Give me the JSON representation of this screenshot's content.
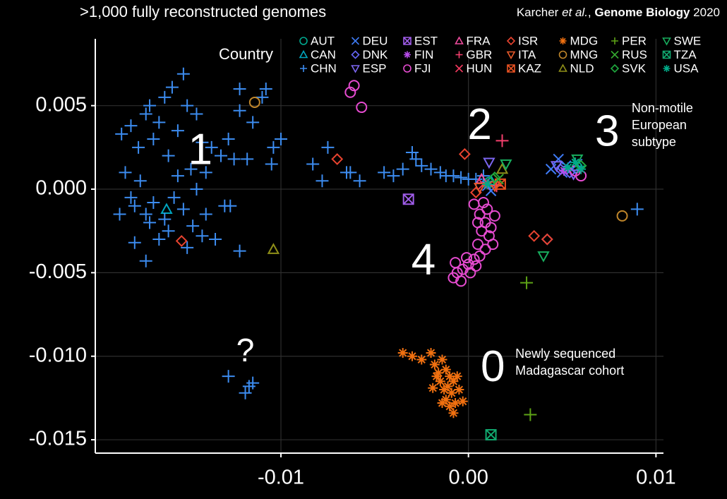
{
  "chart_data": {
    "type": "scatter",
    "title": ">1,000 fully reconstructed genomes",
    "citation": [
      "Karcher ",
      "et al.",
      ", ",
      "Genome Biology",
      " 2020"
    ],
    "legend_title": "Country",
    "annotations": [
      {
        "text": "1",
        "x": -0.0143,
        "y": 0.0022
      },
      {
        "text": "2",
        "x": 0.0006,
        "y": 0.0037
      },
      {
        "text": "3",
        "x": 0.0074,
        "y": 0.0033
      },
      {
        "text": "4",
        "x": -0.0024,
        "y": -0.0044
      },
      {
        "text": "0",
        "x": 0.0013,
        "y": -0.0108
      },
      {
        "text": "?",
        "x": -0.0119,
        "y": -0.0098
      }
    ],
    "notes": [
      {
        "lines": [
          "Non-motile",
          "European",
          "subtype"
        ],
        "x": 0.0087,
        "y": 0.0048
      },
      {
        "lines": [
          "Newly sequenced",
          "Madagascar cohort"
        ],
        "x": 0.0025,
        "y": -0.0099
      }
    ],
    "xlim": [
      -0.0199,
      0.0104
    ],
    "ylim": [
      -0.0158,
      0.009
    ],
    "xticks": [
      -0.01,
      {
        "value": 0,
        "label": "0.00"
      },
      0.01
    ],
    "yticks": [
      0.005,
      {
        "value": 0,
        "label": "0.000"
      },
      -0.005,
      {
        "value": -0.01,
        "label": "-0.010"
      },
      -0.015
    ],
    "grid": true,
    "series": [
      {
        "name": "AUT",
        "color": "#00A98F",
        "marker": "circle",
        "x": [
          0.0011,
          0.0058
        ],
        "values": [
          0.0004,
          0.0013
        ]
      },
      {
        "name": "CAN",
        "color": "#00A6C0",
        "marker": "triangle",
        "x": [
          -0.0161,
          0.0012
        ],
        "values": [
          -0.0012,
          0.0005
        ]
      },
      {
        "name": "CHN",
        "color": "#3C8CF0",
        "marker": "plus",
        "x": [
          -0.0185,
          -0.018,
          -0.0176,
          -0.0172,
          -0.017,
          -0.0168,
          -0.0165,
          -0.0162,
          -0.016,
          -0.0158,
          -0.0155,
          -0.0152,
          -0.015,
          -0.0148,
          -0.0145,
          -0.0142,
          -0.014,
          -0.0137,
          -0.0132,
          -0.0128,
          -0.0183,
          -0.018,
          -0.0178,
          -0.0175,
          -0.0172,
          -0.017,
          -0.0168,
          -0.0165,
          -0.0162,
          -0.016,
          -0.0157,
          -0.0155,
          -0.0152,
          -0.015,
          -0.0147,
          -0.0145,
          -0.0142,
          -0.014,
          -0.0135,
          -0.013,
          -0.0122,
          -0.0172,
          -0.0178,
          -0.0186,
          -0.0122,
          -0.0115,
          -0.011,
          -0.0108,
          -0.0104,
          -0.01,
          -0.0105,
          -0.0125,
          -0.0118,
          -0.0083,
          -0.0078,
          -0.0075,
          -0.0065,
          -0.0063,
          -0.0058,
          -0.0045,
          -0.004,
          -0.0035,
          -0.003,
          -0.0028,
          -0.0025,
          -0.002,
          -0.0015,
          -0.0012,
          -0.0008,
          -0.0004,
          0,
          0.0004,
          0.0008,
          0.009,
          -0.0128,
          -0.0117,
          -0.0115,
          -0.0119,
          -0.0127,
          -0.0122
        ],
        "values": [
          0.0033,
          0.0038,
          0.0025,
          0.0045,
          0.005,
          0.003,
          0.004,
          0.0055,
          0.002,
          0.0061,
          0.0035,
          0.0069,
          0.005,
          0.0012,
          0.0045,
          0.0028,
          0.001,
          0.0025,
          0.002,
          0.003,
          0.001,
          -0.0005,
          -0.001,
          0.0005,
          -0.0015,
          -0.002,
          -0.0008,
          -0.003,
          -0.0018,
          -0.0025,
          -0.0005,
          0.0008,
          -0.0012,
          -0.0035,
          -0.0022,
          0,
          -0.0028,
          -0.0015,
          -0.003,
          -0.001,
          -0.0037,
          -0.0043,
          -0.0032,
          -0.0015,
          0.0047,
          0.004,
          0.0055,
          0.006,
          0.0025,
          0.003,
          0.0015,
          0.0018,
          0.0018,
          0.0015,
          0.0005,
          0.0025,
          0.001,
          0.001,
          0.0005,
          0.001,
          0.0008,
          0.0012,
          0.0022,
          0.0018,
          0.0014,
          0.0012,
          0.001,
          0.0008,
          0.0008,
          0.0007,
          0.0006,
          0.0006,
          0.0008,
          -0.0012,
          -0.0112,
          -0.0118,
          -0.0116,
          -0.0122,
          -0.001,
          0.006
        ]
      },
      {
        "name": "DEU",
        "color": "#3E7BF5",
        "marker": "x",
        "x": [
          0.0048,
          0.0052,
          0.0055,
          0.005,
          0.0044,
          0.0058,
          0.001,
          0.0012
        ],
        "values": [
          0.0018,
          0.0014,
          0.0012,
          0.001,
          0.0012,
          0.0015,
          0.0002,
          -0.0001
        ]
      },
      {
        "name": "DNK",
        "color": "#6565F5",
        "marker": "diamond",
        "x": [
          0.0049,
          0.0054,
          0.0042
        ],
        "values": [
          0.0012,
          0.001,
          -0.003
        ]
      },
      {
        "name": "ESP",
        "color": "#7C66F0",
        "marker": "down",
        "x": [
          0.0011,
          0.0047,
          0.0056
        ],
        "values": [
          0.0016,
          0.0014,
          0.0009
        ]
      },
      {
        "name": "EST",
        "color": "#9F5CE8",
        "marker": "squarex",
        "x": [
          -0.0032
        ],
        "values": [
          -0.0006
        ]
      },
      {
        "name": "FIN",
        "color": "#B84CEB",
        "marker": "asterisk",
        "x": [
          0.0051
        ],
        "values": [
          0.0011
        ]
      },
      {
        "name": "FJI",
        "color": "#E64BD0",
        "marker": "circle",
        "x": [
          -0.0063,
          -0.0061,
          -0.0057,
          0.0008,
          0.001,
          0.0006,
          0.0009,
          0.0012,
          0.0007,
          0.0011,
          0.0013,
          0.0009,
          0.0006,
          0.0003,
          0,
          -0.0003,
          -0.0006,
          -0.0008,
          -0.0004,
          0.0001,
          0.0004,
          -0.0001,
          -0.0007,
          0.0005,
          0.0014,
          0.006,
          0.0057,
          0.0005,
          0.0003
        ],
        "values": [
          0.0058,
          0.0062,
          0.0049,
          -0.0008,
          -0.0012,
          -0.0015,
          -0.002,
          -0.0023,
          -0.0025,
          -0.0028,
          -0.0033,
          -0.0036,
          -0.004,
          -0.0042,
          -0.0045,
          -0.0048,
          -0.005,
          -0.0053,
          -0.0055,
          -0.005,
          -0.0046,
          -0.0041,
          -0.0044,
          -0.0033,
          -0.0016,
          0.0008,
          0.0011,
          -0.002,
          -0.0009
        ]
      },
      {
        "name": "FRA",
        "color": "#F04C9E",
        "marker": "triangle",
        "x": [
          0.0007
        ],
        "values": [
          0.0006
        ]
      },
      {
        "name": "GBR",
        "color": "#F5406E",
        "marker": "plus",
        "x": [
          0.0018,
          0.0015
        ],
        "values": [
          0.0029,
          0.0002
        ]
      },
      {
        "name": "HUN",
        "color": "#F2385E",
        "marker": "x",
        "x": [
          0.0008
        ],
        "values": [
          0.0003
        ]
      },
      {
        "name": "ISR",
        "color": "#E8432F",
        "marker": "diamond",
        "x": [
          -0.007,
          -0.0002,
          -0.0153,
          0.0035,
          0.0042,
          0.0004
        ],
        "values": [
          0.0018,
          0.0021,
          -0.0031,
          -0.0028,
          -0.003,
          -0.0002
        ]
      },
      {
        "name": "ITA",
        "color": "#E85A2A",
        "marker": "down",
        "x": [
          0.0014,
          0.0006
        ],
        "values": [
          0.0002,
          0.0001
        ]
      },
      {
        "name": "KAZ",
        "color": "#EB5222",
        "marker": "squarex",
        "x": [
          0.0017
        ],
        "values": [
          0.0003
        ]
      },
      {
        "name": "MDG",
        "color": "#F07010",
        "marker": "asterisk",
        "x": [
          -0.0035,
          -0.003,
          -0.0025,
          -0.002,
          -0.0018,
          -0.0016,
          -0.0014,
          -0.0012,
          -0.001,
          -0.0015,
          -0.0013,
          -0.0011,
          -0.0008,
          -0.0006,
          -0.0009,
          -0.0012,
          -0.001,
          -0.0007,
          -0.0003,
          -0.0017,
          -0.0019,
          -0.0014,
          -0.0005,
          -0.0008
        ],
        "values": [
          -0.0098,
          -0.01,
          -0.0102,
          -0.0098,
          -0.0105,
          -0.011,
          -0.0102,
          -0.0108,
          -0.0112,
          -0.0115,
          -0.012,
          -0.0118,
          -0.0115,
          -0.0112,
          -0.0122,
          -0.0126,
          -0.013,
          -0.0128,
          -0.0127,
          -0.0112,
          -0.0119,
          -0.0128,
          -0.012,
          -0.0134
        ]
      },
      {
        "name": "MNG",
        "color": "#C0862A",
        "marker": "circle",
        "x": [
          -0.0114,
          0.0082
        ],
        "values": [
          0.0052,
          -0.0016
        ]
      },
      {
        "name": "NLD",
        "color": "#8F8F18",
        "marker": "triangle",
        "x": [
          -0.0104,
          0.0018
        ],
        "values": [
          -0.0036,
          0.0012
        ]
      },
      {
        "name": "PER",
        "color": "#5EA316",
        "marker": "plus",
        "x": [
          0.0031,
          0.0033
        ],
        "values": [
          -0.0056,
          -0.0135
        ]
      },
      {
        "name": "RUS",
        "color": "#35A830",
        "marker": "x",
        "x": [
          0.0016
        ],
        "values": [
          0.0006
        ]
      },
      {
        "name": "SVK",
        "color": "#1FAA3E",
        "marker": "diamond",
        "x": [
          0.006,
          0.0014
        ],
        "values": [
          0.0014,
          0.0007
        ]
      },
      {
        "name": "SWE",
        "color": "#18AD5E",
        "marker": "down",
        "x": [
          0.002,
          0.004,
          0.0058
        ],
        "values": [
          0.0015,
          -0.004,
          0.0018
        ]
      },
      {
        "name": "TZA",
        "color": "#11A86F",
        "marker": "squarex",
        "x": [
          0.0012
        ],
        "values": [
          -0.0147
        ]
      },
      {
        "name": "USA",
        "color": "#00AA88",
        "marker": "asterisk",
        "x": [
          0.0053,
          0.0057,
          0.006,
          0.001
        ],
        "values": [
          0.0013,
          0.0016,
          0.0012,
          0.0003
        ]
      }
    ]
  }
}
